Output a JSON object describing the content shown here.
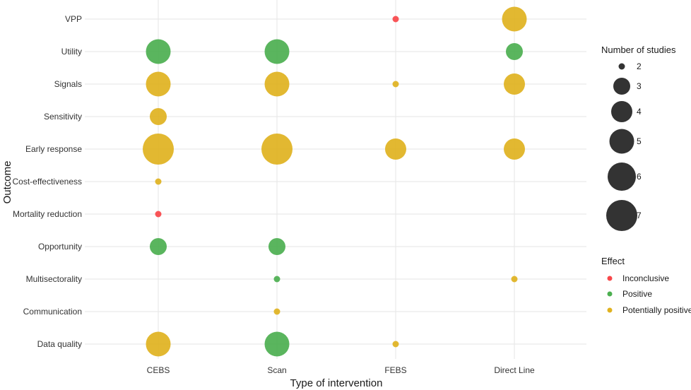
{
  "chart_data": {
    "type": "scatter",
    "xlabel": "Type of intervention",
    "ylabel": "Outcome",
    "x_categories": [
      "CEBS",
      "Scan",
      "FEBS",
      "Direct Line"
    ],
    "y_categories": [
      "VPP",
      "Utility",
      "Signals",
      "Sensitivity",
      "Early response",
      "Cost-effectiveness",
      "Mortality reduction",
      "Opportunity",
      "Multisectorality",
      "Communication",
      "Data quality"
    ],
    "grid": true,
    "size_legend": {
      "title": "Number of studies",
      "values": [
        2,
        3,
        4,
        5,
        6,
        7
      ],
      "placement": "right"
    },
    "color_legend": {
      "title": "Effect",
      "placement": "right",
      "entries": [
        {
          "label": "Inconclusive",
          "color": "#F8474A"
        },
        {
          "label": "Positive",
          "color": "#4CAF50"
        },
        {
          "label": "Potentially positive",
          "color": "#E0B21F"
        }
      ]
    },
    "points": [
      {
        "x": "FEBS",
        "y": "VPP",
        "n": 2,
        "effect": "Inconclusive"
      },
      {
        "x": "Direct Line",
        "y": "VPP",
        "n": 5,
        "effect": "Potentially positive"
      },
      {
        "x": "CEBS",
        "y": "Utility",
        "n": 5,
        "effect": "Positive"
      },
      {
        "x": "Scan",
        "y": "Utility",
        "n": 5,
        "effect": "Positive"
      },
      {
        "x": "Direct Line",
        "y": "Utility",
        "n": 3,
        "effect": "Positive"
      },
      {
        "x": "CEBS",
        "y": "Signals",
        "n": 5,
        "effect": "Potentially positive"
      },
      {
        "x": "Scan",
        "y": "Signals",
        "n": 5,
        "effect": "Potentially positive"
      },
      {
        "x": "FEBS",
        "y": "Signals",
        "n": 2,
        "effect": "Potentially positive"
      },
      {
        "x": "Direct Line",
        "y": "Signals",
        "n": 4,
        "effect": "Potentially positive"
      },
      {
        "x": "CEBS",
        "y": "Sensitivity",
        "n": 3,
        "effect": "Potentially positive"
      },
      {
        "x": "CEBS",
        "y": "Early response",
        "n": 7,
        "effect": "Potentially positive"
      },
      {
        "x": "Scan",
        "y": "Early response",
        "n": 7,
        "effect": "Potentially positive"
      },
      {
        "x": "FEBS",
        "y": "Early response",
        "n": 4,
        "effect": "Potentially positive"
      },
      {
        "x": "Direct Line",
        "y": "Early response",
        "n": 4,
        "effect": "Potentially positive"
      },
      {
        "x": "CEBS",
        "y": "Cost-effectiveness",
        "n": 2,
        "effect": "Potentially positive"
      },
      {
        "x": "CEBS",
        "y": "Mortality reduction",
        "n": 2,
        "effect": "Inconclusive"
      },
      {
        "x": "CEBS",
        "y": "Opportunity",
        "n": 3,
        "effect": "Positive"
      },
      {
        "x": "Scan",
        "y": "Opportunity",
        "n": 3,
        "effect": "Positive"
      },
      {
        "x": "Scan",
        "y": "Multisectorality",
        "n": 2,
        "effect": "Positive"
      },
      {
        "x": "Direct Line",
        "y": "Multisectorality",
        "n": 2,
        "effect": "Potentially positive"
      },
      {
        "x": "Scan",
        "y": "Communication",
        "n": 2,
        "effect": "Potentially positive"
      },
      {
        "x": "CEBS",
        "y": "Data quality",
        "n": 5,
        "effect": "Potentially positive"
      },
      {
        "x": "Scan",
        "y": "Data quality",
        "n": 5,
        "effect": "Positive"
      },
      {
        "x": "FEBS",
        "y": "Data quality",
        "n": 2,
        "effect": "Potentially positive"
      }
    ]
  }
}
